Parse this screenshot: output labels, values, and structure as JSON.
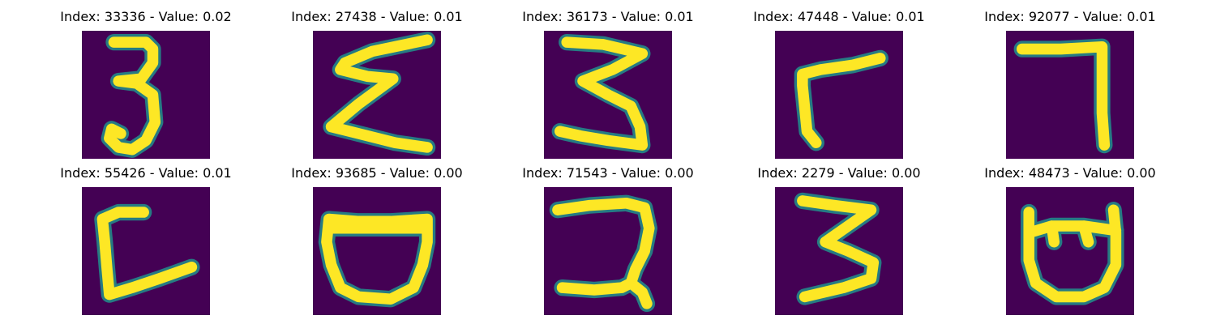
{
  "panels": [
    {
      "title": "Index: 33336 - Value: 0.02",
      "glyph": "digit-3-stroke"
    },
    {
      "title": "Index: 27438 - Value: 0.01",
      "glyph": "zigzag-stroke"
    },
    {
      "title": "Index: 36173 - Value: 0.01",
      "glyph": "zigzag-3-stroke"
    },
    {
      "title": "Index: 47448 - Value: 0.01",
      "glyph": "corner-stroke"
    },
    {
      "title": "Index: 92077 - Value: 0.01",
      "glyph": "digit-7-stroke"
    },
    {
      "title": "Index: 55426 - Value: 0.01",
      "glyph": "bracket-stroke"
    },
    {
      "title": "Index: 93685 - Value: 0.00",
      "glyph": "bowl-stroke"
    },
    {
      "title": "Index: 71543 - Value: 0.00",
      "glyph": "hook-stroke"
    },
    {
      "title": "Index: 2279 - Value: 0.00",
      "glyph": "digit-3-angular-stroke"
    },
    {
      "title": "Index: 48473 - Value: 0.00",
      "glyph": "cup-stroke"
    }
  ],
  "colors": {
    "background": "#440154",
    "stroke": "#fde725",
    "stroke_edge": "#21918c"
  }
}
